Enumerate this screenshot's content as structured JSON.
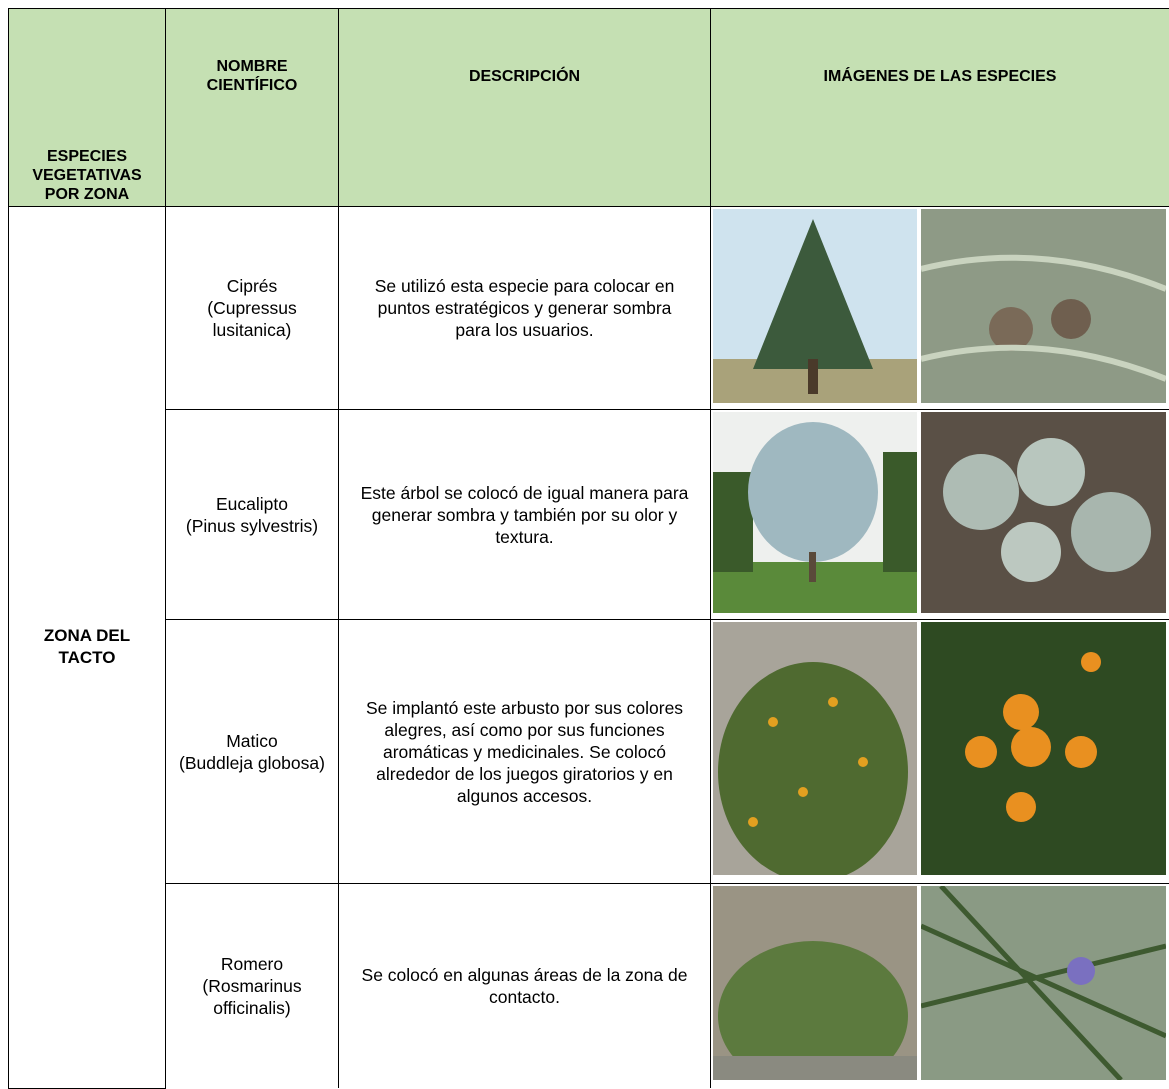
{
  "table": {
    "header": [
      "ESPECIES VEGETATIVAS POR ZONA",
      "NOMBRE CIENTÍFICO",
      "DESCRIPCIÓN",
      "IMÁGENES DE LAS ESPECIES"
    ],
    "zone": "ZONA DEL TACTO",
    "rows": [
      {
        "name": "Ciprés",
        "scientific": "(Cupressus lusitanica)",
        "description": "Se utilizó esta especie para colocar en puntos estratégicos y generar sombra para los usuarios."
      },
      {
        "name": "Eucalipto",
        "scientific": "(Pinus sylvestris)",
        "description": "Este árbol se colocó de igual manera para generar sombra y también por su olor y textura."
      },
      {
        "name": "Matico",
        "scientific": "(Buddleja globosa)",
        "description": "Se implantó este arbusto por sus colores alegres, así como por sus funciones aromáticas y medicinales. Se colocó alrededor de los juegos giratorios y en algunos accesos."
      },
      {
        "name": "Romero",
        "scientific": "(Rosmarinus officinalis)",
        "description": "Se colocó en algunas áreas de la zona de contacto."
      }
    ]
  }
}
